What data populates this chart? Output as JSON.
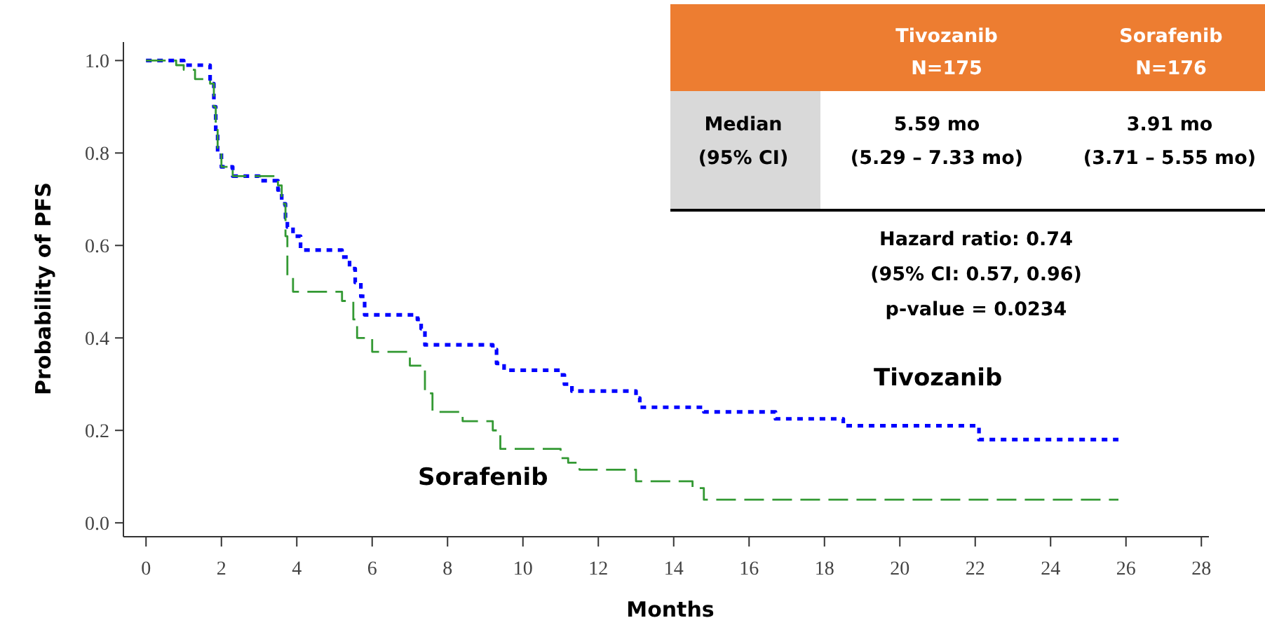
{
  "chart_data": {
    "type": "step",
    "xlabel": "Months",
    "ylabel": "Probability of PFS",
    "xlim": [
      -0.6,
      28.2
    ],
    "ylim": [
      -0.03,
      1.04
    ],
    "xticks": [
      0,
      2,
      4,
      6,
      8,
      10,
      12,
      14,
      16,
      18,
      20,
      22,
      24,
      26,
      28
    ],
    "yticks": [
      {
        "value": 0,
        "label": "0.0"
      },
      {
        "value": 0.2,
        "label": "0.2"
      },
      {
        "value": 0.4,
        "label": "0.4"
      },
      {
        "value": 0.6,
        "label": "0.6"
      },
      {
        "value": 0.8,
        "label": "0.8"
      },
      {
        "value": 1,
        "label": "1.0"
      }
    ],
    "series": [
      {
        "name": "Tivozanib",
        "color": "#0000ff",
        "line_style": "dotted",
        "x": [
          0,
          1.0,
          1.7,
          1.8,
          1.85,
          1.9,
          2.0,
          2.3,
          3.0,
          3.5,
          3.6,
          3.7,
          3.75,
          3.9,
          4.1,
          5.2,
          5.4,
          5.55,
          5.7,
          5.8,
          7.2,
          7.3,
          7.4,
          9.2,
          9.3,
          9.5,
          11.0,
          11.1,
          11.3,
          13.0,
          13.1,
          14.8,
          16.7,
          18.5,
          22.1,
          25.8
        ],
        "values": [
          1.0,
          0.99,
          0.95,
          0.9,
          0.84,
          0.8,
          0.77,
          0.75,
          0.74,
          0.72,
          0.69,
          0.66,
          0.64,
          0.62,
          0.59,
          0.575,
          0.55,
          0.52,
          0.49,
          0.45,
          0.44,
          0.42,
          0.385,
          0.375,
          0.345,
          0.33,
          0.32,
          0.3,
          0.285,
          0.27,
          0.25,
          0.24,
          0.225,
          0.21,
          0.18,
          0.18
        ]
      },
      {
        "name": "Sorafenib",
        "color": "#339933",
        "line_style": "dashed",
        "x": [
          0,
          0.8,
          1.0,
          1.3,
          1.7,
          1.8,
          1.85,
          1.9,
          2.0,
          2.3,
          3.5,
          3.6,
          3.7,
          3.75,
          3.9,
          5.2,
          5.5,
          5.6,
          6.0,
          7.0,
          7.4,
          7.6,
          8.4,
          9.2,
          9.4,
          11.0,
          11.2,
          11.5,
          13.0,
          14.5,
          14.8,
          25.8
        ],
        "values": [
          1.0,
          0.99,
          0.98,
          0.96,
          0.95,
          0.9,
          0.85,
          0.8,
          0.77,
          0.75,
          0.73,
          0.69,
          0.62,
          0.53,
          0.5,
          0.48,
          0.44,
          0.4,
          0.37,
          0.34,
          0.28,
          0.24,
          0.22,
          0.2,
          0.16,
          0.14,
          0.13,
          0.115,
          0.09,
          0.075,
          0.05,
          0.05
        ]
      }
    ],
    "annotations": [
      "Tivozanib",
      "N=175",
      "Sorafenib",
      "N=176",
      "Median",
      "(95% CI)",
      "5.59 mo",
      "(5.29 – 7.33 mo)",
      "3.91 mo",
      "(3.71 – 5.55 mo)",
      "Hazard ratio: 0.74",
      "(95% CI: 0.57, 0.96)",
      "p-value = 0.0234"
    ]
  }
}
